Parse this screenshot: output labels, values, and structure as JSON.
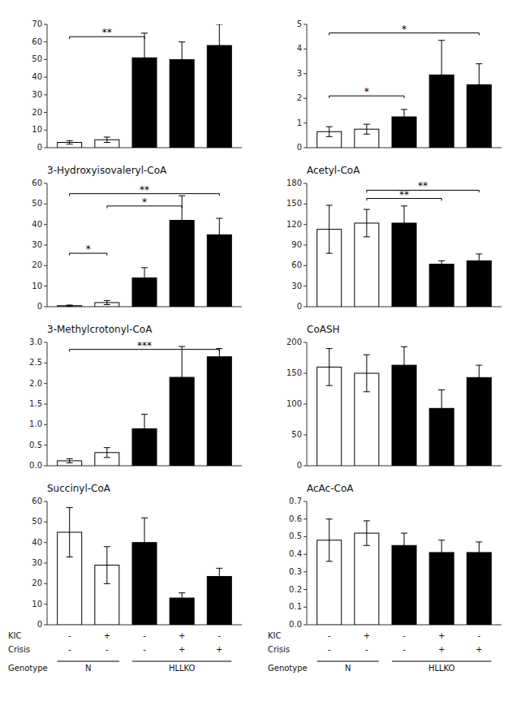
{
  "chart_data": [
    {
      "type": "bar",
      "categories": [
        null,
        null,
        null,
        null,
        null
      ],
      "values": [
        3.0,
        4.5,
        51.0,
        50.0,
        58.0
      ],
      "errors": [
        1.0,
        1.5,
        14.0,
        10.0,
        12.0
      ],
      "colors": [
        "white",
        "white",
        "black",
        "black",
        "black"
      ],
      "ylim": [
        0,
        70
      ],
      "yticks": [
        0,
        10,
        20,
        30,
        40,
        50,
        60,
        70
      ],
      "brackets": [
        {
          "x1": 0,
          "x2": 2,
          "y": 63,
          "label": "**"
        }
      ]
    },
    {
      "type": "bar",
      "categories": [
        null,
        null,
        null,
        null,
        null
      ],
      "values": [
        0.65,
        0.75,
        1.25,
        2.95,
        2.55
      ],
      "errors": [
        0.2,
        0.2,
        0.3,
        1.4,
        0.85
      ],
      "colors": [
        "white",
        "white",
        "black",
        "black",
        "black"
      ],
      "ylim": [
        0,
        5.0
      ],
      "yticks": [
        0,
        1,
        2,
        3,
        4,
        5
      ],
      "brackets": [
        {
          "x1": 0,
          "x2": 4,
          "y": 4.65,
          "label": "*"
        },
        {
          "x1": 0,
          "x2": 2,
          "y": 2.1,
          "label": "*"
        }
      ]
    },
    {
      "type": "bar",
      "title": "3-Hydroxyisovaleryl-CoA",
      "categories": [
        null,
        null,
        null,
        null,
        null
      ],
      "values": [
        0.5,
        2.0,
        14.0,
        42.0,
        35.0
      ],
      "errors": [
        0.3,
        1.0,
        5.0,
        12.0,
        8.0
      ],
      "colors": [
        "white",
        "white",
        "black",
        "black",
        "black"
      ],
      "ylim": [
        0,
        60
      ],
      "yticks": [
        0,
        10,
        20,
        30,
        40,
        50,
        60
      ],
      "brackets": [
        {
          "x1": 0,
          "x2": 4,
          "y": 55,
          "label": "**"
        },
        {
          "x1": 1,
          "x2": 3,
          "y": 49,
          "label": "*"
        },
        {
          "x1": 0,
          "x2": 1,
          "y": 26,
          "label": "*"
        }
      ]
    },
    {
      "type": "bar",
      "title": "Acetyl-CoA",
      "categories": [
        null,
        null,
        null,
        null,
        null
      ],
      "values": [
        113.0,
        122.0,
        122.0,
        62.0,
        67.0
      ],
      "errors": [
        35.0,
        20.0,
        25.0,
        5.0,
        10.0
      ],
      "colors": [
        "white",
        "white",
        "black",
        "black",
        "black"
      ],
      "ylim": [
        0,
        180
      ],
      "yticks": [
        0,
        30,
        60,
        90,
        120,
        150,
        180
      ],
      "brackets": [
        {
          "x1": 1,
          "x2": 4,
          "y": 170,
          "label": "**"
        },
        {
          "x1": 1,
          "x2": 3,
          "y": 158,
          "label": "**"
        }
      ]
    },
    {
      "type": "bar",
      "title": "3-Methylcrotonyl-CoA",
      "categories": [
        null,
        null,
        null,
        null,
        null
      ],
      "values": [
        0.12,
        0.32,
        0.9,
        2.15,
        2.65
      ],
      "errors": [
        0.05,
        0.12,
        0.35,
        0.75,
        0.2
      ],
      "colors": [
        "white",
        "white",
        "black",
        "black",
        "black"
      ],
      "ylim": [
        0,
        3.0
      ],
      "yticks": [
        {
          "value": 0,
          "label": "0.0"
        },
        0.5,
        {
          "value": 1,
          "label": "1.0"
        },
        1.5,
        {
          "value": 2,
          "label": "2.0"
        },
        2.5,
        {
          "value": 3,
          "label": "3.0"
        }
      ],
      "brackets": [
        {
          "x1": 0,
          "x2": 4,
          "y": 2.83,
          "label": "***"
        }
      ]
    },
    {
      "type": "bar",
      "title": "CoASH",
      "categories": [
        null,
        null,
        null,
        null,
        null
      ],
      "values": [
        160.0,
        150.0,
        163.0,
        93.0,
        143.0
      ],
      "errors": [
        30.0,
        30.0,
        30.0,
        30.0,
        20.0
      ],
      "colors": [
        "white",
        "white",
        "black",
        "black",
        "black"
      ],
      "ylim": [
        0,
        200
      ],
      "yticks": [
        0,
        50,
        100,
        150,
        200
      ],
      "brackets": []
    },
    {
      "type": "bar",
      "title": "Succinyl-CoA",
      "categories": [
        null,
        null,
        null,
        null,
        null
      ],
      "values": [
        45.0,
        29.0,
        40.0,
        13.0,
        23.5
      ],
      "errors": [
        12.0,
        9.0,
        12.0,
        2.5,
        4.0
      ],
      "colors": [
        "white",
        "white",
        "black",
        "black",
        "black"
      ],
      "ylim": [
        0,
        60
      ],
      "yticks": [
        0,
        10,
        20,
        30,
        40,
        50,
        60
      ],
      "brackets": [],
      "annotations": [
        {
          "label": "KIC",
          "values": [
            "-",
            "+",
            "-",
            "+",
            "-"
          ]
        },
        {
          "label": "Crisis",
          "values": [
            "-",
            "-",
            "-",
            "+",
            "+"
          ]
        },
        {
          "label": "Genotype",
          "values": [
            "N",
            null,
            "HLLKO",
            null,
            null
          ]
        }
      ]
    },
    {
      "type": "bar",
      "title": "AcAc-CoA",
      "categories": [
        null,
        null,
        null,
        null,
        null
      ],
      "values": [
        0.48,
        0.52,
        0.45,
        0.41,
        0.41
      ],
      "errors": [
        0.12,
        0.07,
        0.07,
        0.07,
        0.06
      ],
      "colors": [
        "white",
        "white",
        "black",
        "black",
        "black"
      ],
      "ylim": [
        0,
        0.7
      ],
      "yticks": [
        {
          "value": 0,
          "label": "0.0"
        },
        0.1,
        0.2,
        0.3,
        0.4,
        0.5,
        0.6,
        0.7
      ],
      "brackets": [],
      "annotations": [
        {
          "label": "KIC",
          "values": [
            "-",
            "+",
            "-",
            "+",
            "-"
          ]
        },
        {
          "label": "Crisis",
          "values": [
            "-",
            "-",
            "-",
            "+",
            "+"
          ]
        },
        {
          "label": "Genotype",
          "values": [
            "N",
            null,
            "HLLKO",
            null,
            null
          ]
        }
      ]
    }
  ]
}
